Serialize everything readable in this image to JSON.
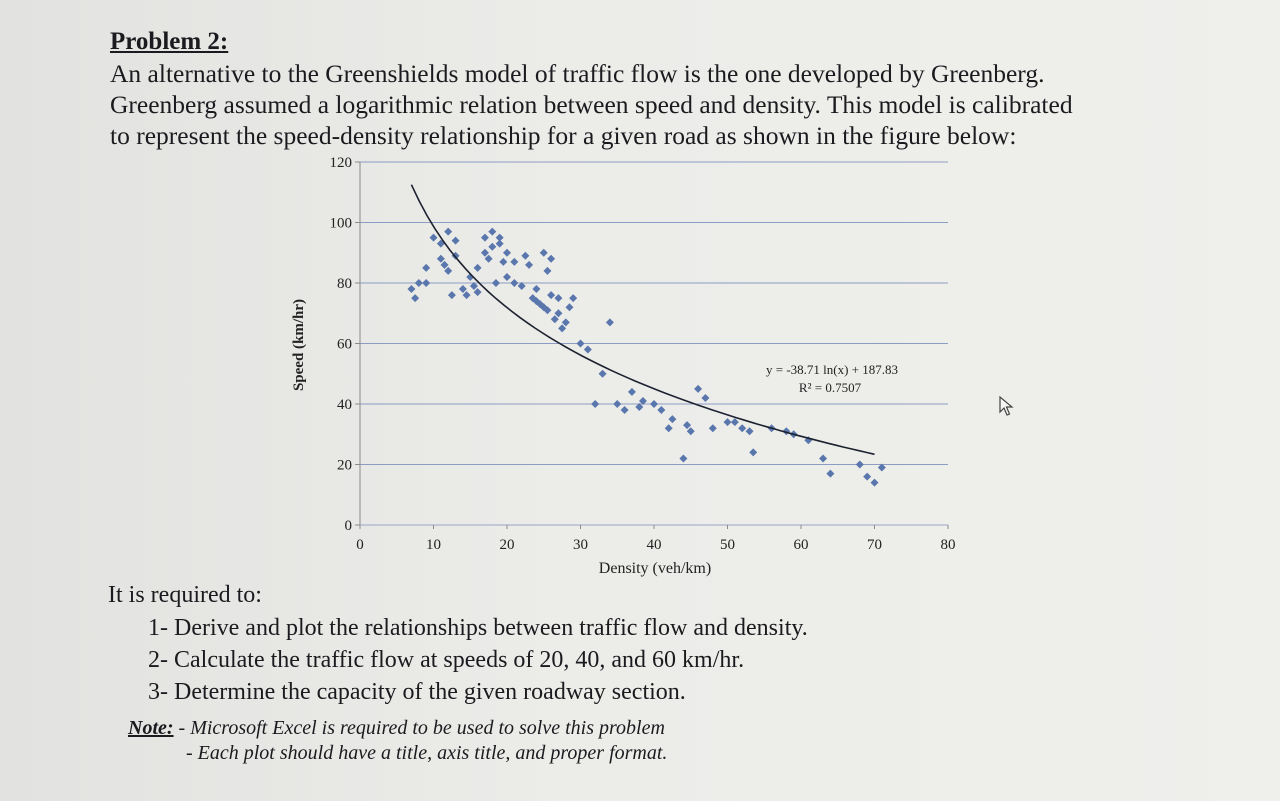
{
  "problem": {
    "title": "Problem 2:",
    "intro_lines": [
      "An alternative to the Greenshields model of traffic flow is the one developed by Greenberg.",
      "Greenberg assumed a logarithmic relation between speed and density. This model is calibrated",
      "to represent the speed-density relationship for a given road as shown in the figure below:"
    ]
  },
  "chart_data": {
    "type": "scatter",
    "title": "",
    "xlabel": "Density (veh/km)",
    "ylabel": "Speed (km/hr)",
    "xlim": [
      0,
      80
    ],
    "ylim": [
      0,
      120
    ],
    "x_ticks": [
      0,
      10,
      20,
      30,
      40,
      50,
      60,
      70,
      80
    ],
    "y_ticks": [
      0,
      20,
      40,
      60,
      80,
      100,
      120
    ],
    "grid": "horizontal",
    "marker_color": "#5a77ad",
    "trend_color": "#1c2230",
    "trendline": {
      "type": "logarithmic",
      "a": -38.71,
      "b": 187.83,
      "x_range": [
        7,
        70
      ],
      "equation": "y = -38.71 ln(x) + 187.83",
      "r2": "R² = 0.7507"
    },
    "points": [
      [
        7,
        78
      ],
      [
        7.5,
        75
      ],
      [
        8,
        80
      ],
      [
        9,
        80
      ],
      [
        9,
        85
      ],
      [
        10,
        95
      ],
      [
        11,
        93
      ],
      [
        11,
        88
      ],
      [
        11.5,
        86
      ],
      [
        12,
        84
      ],
      [
        12,
        97
      ],
      [
        13,
        89
      ],
      [
        13,
        94
      ],
      [
        12.5,
        76
      ],
      [
        14,
        78
      ],
      [
        14.5,
        76
      ],
      [
        15,
        82
      ],
      [
        15.5,
        79
      ],
      [
        16,
        77
      ],
      [
        16,
        85
      ],
      [
        17,
        95
      ],
      [
        17,
        90
      ],
      [
        17.5,
        88
      ],
      [
        18,
        92
      ],
      [
        18,
        97
      ],
      [
        18.5,
        80
      ],
      [
        19,
        93
      ],
      [
        19,
        95
      ],
      [
        19.5,
        87
      ],
      [
        20,
        90
      ],
      [
        20,
        82
      ],
      [
        21,
        87
      ],
      [
        21,
        80
      ],
      [
        22,
        79
      ],
      [
        22.5,
        89
      ],
      [
        23,
        86
      ],
      [
        23.5,
        75
      ],
      [
        24,
        78
      ],
      [
        24,
        74
      ],
      [
        24.5,
        73
      ],
      [
        25,
        72
      ],
      [
        25,
        90
      ],
      [
        25.5,
        84
      ],
      [
        25.5,
        71
      ],
      [
        26,
        88
      ],
      [
        26,
        76
      ],
      [
        26.5,
        68
      ],
      [
        27,
        75
      ],
      [
        27,
        70
      ],
      [
        27.5,
        65
      ],
      [
        28,
        67
      ],
      [
        28.5,
        72
      ],
      [
        29,
        75
      ],
      [
        30,
        60
      ],
      [
        31,
        58
      ],
      [
        32,
        40
      ],
      [
        33,
        50
      ],
      [
        34,
        67
      ],
      [
        35,
        40
      ],
      [
        36,
        38
      ],
      [
        37,
        44
      ],
      [
        38,
        39
      ],
      [
        38.5,
        41
      ],
      [
        40,
        40
      ],
      [
        41,
        38
      ],
      [
        42,
        32
      ],
      [
        42.5,
        35
      ],
      [
        44,
        22
      ],
      [
        44.5,
        33
      ],
      [
        45,
        31
      ],
      [
        46,
        45
      ],
      [
        47,
        42
      ],
      [
        48,
        32
      ],
      [
        50,
        34
      ],
      [
        51,
        34
      ],
      [
        52,
        32
      ],
      [
        53,
        31
      ],
      [
        53.5,
        24
      ],
      [
        56,
        32
      ],
      [
        58,
        31
      ],
      [
        59,
        30
      ],
      [
        61,
        28
      ],
      [
        63,
        22
      ],
      [
        64,
        17
      ],
      [
        68,
        20
      ],
      [
        69,
        16
      ],
      [
        70,
        14
      ],
      [
        71,
        19
      ]
    ]
  },
  "requirements": {
    "heading": "It is required to:",
    "items": [
      "1- Derive and plot the relationships between traffic flow and density.",
      "2- Calculate the traffic flow at speeds of 20, 40, and 60 km/hr.",
      "3- Determine the capacity of the given roadway section."
    ]
  },
  "note": {
    "label": "Note:",
    "line1": " - Microsoft Excel is required to be used to solve this problem",
    "line2": "- Each plot should have a title, axis title, and proper format."
  }
}
